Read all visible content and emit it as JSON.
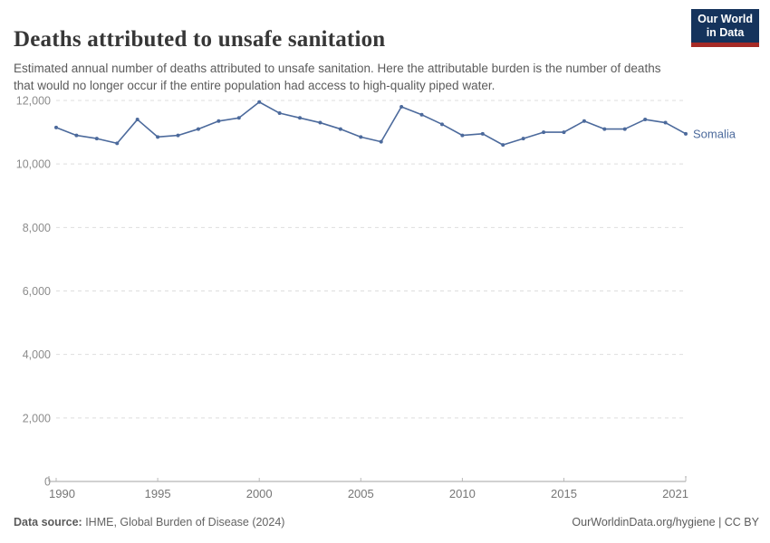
{
  "header": {
    "title": "Deaths attributed to unsafe sanitation",
    "subtitle": "Estimated annual number of deaths attributed to unsafe sanitation. Here the attributable burden is the number of deaths that would no longer occur if the entire population had access to high-quality piped water.",
    "logo": {
      "line1": "Our World",
      "line2": "in Data"
    }
  },
  "footer": {
    "source_label": "Data source:",
    "source_value": " IHME, Global Burden of Disease (2024)",
    "license": "OurWorldinData.org/hygiene | CC BY"
  },
  "colors": {
    "series": "#4C6A9C",
    "gridline": "#dedede",
    "axis": "#a3a3a3",
    "tick": "#b9b9b9",
    "y_label": "#8c8c8c",
    "x_label": "#767676",
    "logo_navy": "#15335c",
    "logo_red": "#a62b26"
  },
  "chart_data": {
    "type": "line",
    "title": "Deaths attributed to unsafe sanitation",
    "xlabel": "",
    "ylabel": "",
    "ylim": [
      0,
      12000
    ],
    "yticks": [
      0,
      2000,
      4000,
      6000,
      8000,
      10000,
      12000
    ],
    "xticks": [
      1990,
      1995,
      2000,
      2005,
      2010,
      2015,
      2021
    ],
    "grid": "horizontal-dashed",
    "legend": "end-of-line-label",
    "x": [
      1990,
      1991,
      1992,
      1993,
      1994,
      1995,
      1996,
      1997,
      1998,
      1999,
      2000,
      2001,
      2002,
      2003,
      2004,
      2005,
      2006,
      2007,
      2008,
      2009,
      2010,
      2011,
      2012,
      2013,
      2014,
      2015,
      2016,
      2017,
      2018,
      2019,
      2020,
      2021
    ],
    "series": [
      {
        "name": "Somalia",
        "values": [
          11150,
          10900,
          10800,
          10650,
          11400,
          10850,
          10900,
          11100,
          11350,
          11450,
          11950,
          11600,
          11450,
          11300,
          11100,
          10850,
          10700,
          11800,
          11550,
          11250,
          10900,
          10950,
          10600,
          10800,
          11000,
          11000,
          11350,
          11100,
          11100,
          11400,
          11300,
          10950
        ]
      }
    ]
  }
}
